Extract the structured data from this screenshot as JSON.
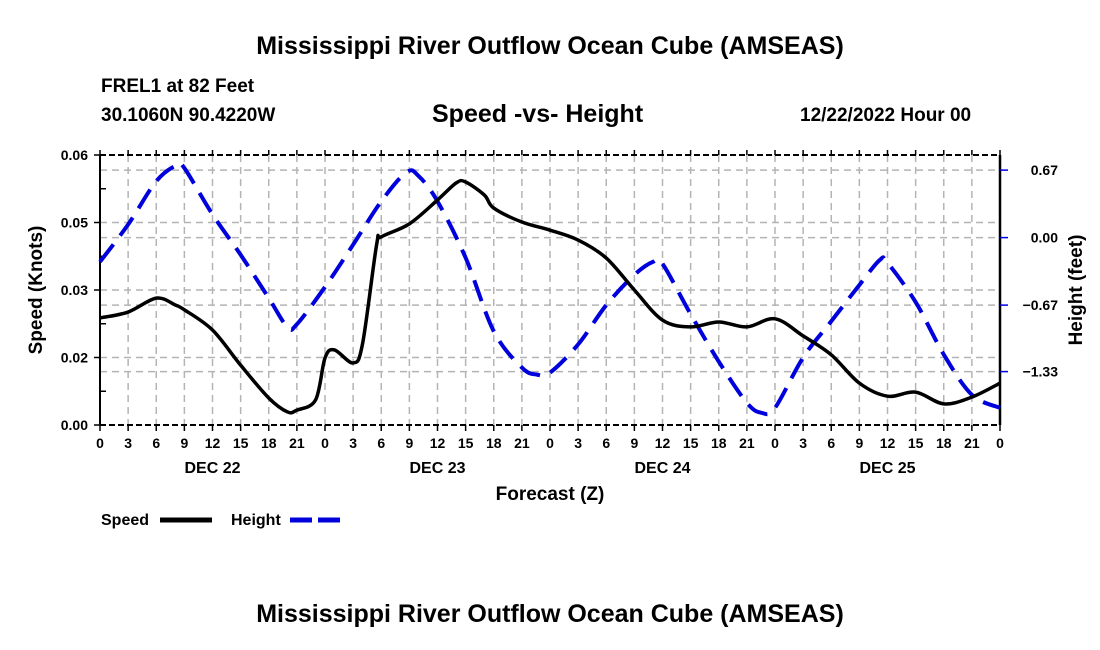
{
  "header": {
    "title": "Mississippi River Outflow Ocean Cube (AMSEAS)",
    "station": "FREL1 at 82 Feet",
    "coords": "30.1060N  90.4220W",
    "subtitle": "Speed -vs- Height",
    "datetime": "12/22/2022 Hour 00",
    "footer_title": "Mississippi River Outflow Ocean Cube (AMSEAS)"
  },
  "chart_data": {
    "type": "line",
    "title": "Speed -vs- Height",
    "xlabel": "Forecast (Z)",
    "ylabel": "Speed (Knots)",
    "y2label": "Height (feet)",
    "xlim": [
      0,
      96
    ],
    "ylim": [
      0,
      0.06
    ],
    "y2lim": [
      -1.86,
      0.82
    ],
    "grid": true,
    "x_tick_labels": [
      "0",
      "3",
      "6",
      "9",
      "12",
      "15",
      "18",
      "21",
      "0",
      "3",
      "6",
      "9",
      "12",
      "15",
      "18",
      "21",
      "0",
      "3",
      "6",
      "9",
      "12",
      "15",
      "18",
      "21",
      "0",
      "3",
      "6",
      "9",
      "12",
      "15",
      "18",
      "21",
      "0"
    ],
    "date_labels": [
      {
        "hour": 12,
        "label": "DEC 22"
      },
      {
        "hour": 36,
        "label": "DEC 23"
      },
      {
        "hour": 60,
        "label": "DEC 24"
      },
      {
        "hour": 84,
        "label": "DEC 25"
      }
    ],
    "y_ticks": [
      {
        "value": 0.06,
        "label": "0.06"
      },
      {
        "value": 0.045,
        "label": "0.05"
      },
      {
        "value": 0.03,
        "label": "0.03"
      },
      {
        "value": 0.015,
        "label": "0.02"
      },
      {
        "value": 0,
        "label": "0.00"
      }
    ],
    "y2_ticks": [
      {
        "value": 0.67,
        "label": "0.67"
      },
      {
        "value": 0,
        "label": "0.00"
      },
      {
        "value": -0.67,
        "label": "−0.67"
      },
      {
        "value": -1.33,
        "label": "−1.33"
      }
    ],
    "legend_placement": "bottom-left",
    "series": [
      {
        "name": "Speed",
        "axis": "left",
        "color": "#000000",
        "dashed": false,
        "x": [
          0,
          3,
          6,
          8,
          9,
          12,
          15,
          18,
          20,
          21,
          23,
          24,
          25,
          27,
          28,
          29.5,
          30,
          33,
          36,
          38,
          39,
          41,
          42,
          45,
          48,
          51,
          54,
          57,
          60,
          63,
          66,
          69,
          72,
          75,
          78,
          81,
          84,
          87,
          90,
          93,
          96
        ],
        "y": [
          0.0238,
          0.0251,
          0.0282,
          0.0267,
          0.0256,
          0.0211,
          0.0133,
          0.006,
          0.0029,
          0.0033,
          0.0056,
          0.0149,
          0.0167,
          0.0138,
          0.018,
          0.04,
          0.0418,
          0.0447,
          0.05,
          0.0538,
          0.054,
          0.0511,
          0.0482,
          0.0451,
          0.0433,
          0.0411,
          0.0371,
          0.03,
          0.0233,
          0.0218,
          0.0229,
          0.0218,
          0.0236,
          0.0198,
          0.0156,
          0.0093,
          0.0064,
          0.0073,
          0.0047,
          0.0062,
          0.0093
        ]
      },
      {
        "name": "Height",
        "axis": "right",
        "color": "#0000dd",
        "dashed": true,
        "x": [
          0,
          3,
          6,
          8.2,
          9,
          12,
          15,
          18,
          20,
          21,
          24,
          27,
          30,
          32.7,
          34,
          36,
          39,
          42,
          45,
          46.6,
          48,
          51,
          54,
          57,
          59,
          60,
          63,
          66,
          69,
          70.6,
          72,
          75,
          78,
          81,
          83.2,
          84,
          87,
          90,
          93,
          96
        ],
        "y": [
          -0.24,
          0.13,
          0.56,
          0.72,
          0.69,
          0.23,
          -0.17,
          -0.6,
          -0.89,
          -0.86,
          -0.49,
          -0.07,
          0.36,
          0.65,
          0.61,
          0.36,
          -0.2,
          -0.93,
          -1.29,
          -1.36,
          -1.34,
          -1.06,
          -0.67,
          -0.37,
          -0.24,
          -0.26,
          -0.76,
          -1.23,
          -1.64,
          -1.74,
          -1.69,
          -1.19,
          -0.83,
          -0.47,
          -0.22,
          -0.25,
          -0.64,
          -1.16,
          -1.56,
          -1.69
        ]
      }
    ]
  }
}
